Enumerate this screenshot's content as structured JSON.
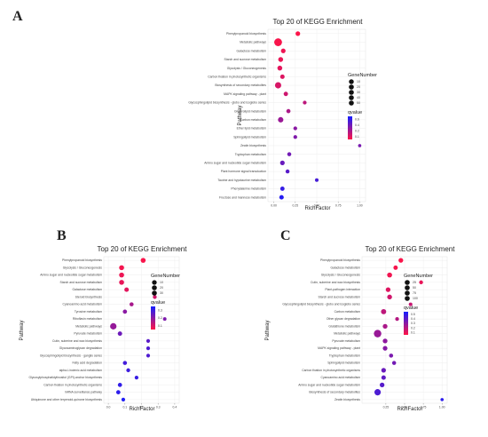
{
  "panel_letters": {
    "a": "A",
    "b": "B",
    "c": "C"
  },
  "chart_data": [
    {
      "type": "scatter",
      "title": "Top 20 of KEGG Enrichment",
      "xlabel": "RichFactor",
      "ylabel": "Pathway",
      "xlim": [
        0,
        1
      ],
      "xticks": [
        "0.00",
        "0.25",
        "0.50",
        "0.75",
        "1.00"
      ],
      "grid": true,
      "legend": {
        "size_title": "GeneNumber",
        "size_values": [
          "10",
          "20",
          "30",
          "40",
          "50"
        ],
        "color_title": "qvalue",
        "color_values": [
          "0.6",
          "0.4",
          "0.2",
          "0.1"
        ]
      },
      "points": [
        {
          "pathway": "Phenylpropanoid biosynthesis",
          "x": 0.28,
          "genes": 8,
          "q": 0.01
        },
        {
          "pathway": "Metabolic pathways",
          "x": 0.05,
          "genes": 50,
          "q": 0.02
        },
        {
          "pathway": "Galactose metabolism",
          "x": 0.11,
          "genes": 8,
          "q": 0.05
        },
        {
          "pathway": "Starch and sucrose metabolism",
          "x": 0.08,
          "genes": 10,
          "q": 0.06
        },
        {
          "pathway": "Glycolysis / Gluconeogenesis",
          "x": 0.07,
          "genes": 10,
          "q": 0.08
        },
        {
          "pathway": "Carbon fixation in photosynthetic organisms",
          "x": 0.1,
          "genes": 7,
          "q": 0.1
        },
        {
          "pathway": "Biosynthesis of secondary metabolites",
          "x": 0.05,
          "genes": 25,
          "q": 0.12
        },
        {
          "pathway": "MAPK signaling pathway - plant",
          "x": 0.14,
          "genes": 6,
          "q": 0.15
        },
        {
          "pathway": "Glycosphingolipid biosynthesis - globo and isoglobo series",
          "x": 0.36,
          "genes": 3,
          "q": 0.2
        },
        {
          "pathway": "Glycerolipid metabolism",
          "x": 0.17,
          "genes": 5,
          "q": 0.25
        },
        {
          "pathway": "Carbon metabolism",
          "x": 0.08,
          "genes": 15,
          "q": 0.3
        },
        {
          "pathway": "Ether lipid metabolism",
          "x": 0.25,
          "genes": 3,
          "q": 0.35
        },
        {
          "pathway": "Sphingolipid metabolism",
          "x": 0.25,
          "genes": 3,
          "q": 0.38
        },
        {
          "pathway": "Zeatin biosynthesis",
          "x": 1.0,
          "genes": 1,
          "q": 0.4
        },
        {
          "pathway": "Tryptophan metabolism",
          "x": 0.18,
          "genes": 4,
          "q": 0.42
        },
        {
          "pathway": "Amino sugar and nucleotide sugar metabolism",
          "x": 0.1,
          "genes": 8,
          "q": 0.45
        },
        {
          "pathway": "Plant hormone signal transduction",
          "x": 0.16,
          "genes": 4,
          "q": 0.5
        },
        {
          "pathway": "Taurine and hypotaurine metabolism",
          "x": 0.5,
          "genes": 2,
          "q": 0.55
        },
        {
          "pathway": "Phenylalanine metabolism",
          "x": 0.1,
          "genes": 6,
          "q": 0.6
        },
        {
          "pathway": "Fructose and mannose metabolism",
          "x": 0.09,
          "genes": 7,
          "q": 0.65
        }
      ]
    },
    {
      "type": "scatter",
      "title": "Top 20 of KEGG Enrichment",
      "xlabel": "RichFactor",
      "ylabel": "Pathway",
      "xlim": [
        0,
        0.4
      ],
      "xticks": [
        "0.0",
        "0.1",
        "0.2",
        "0.3",
        "0.4"
      ],
      "grid": true,
      "legend": {
        "size_title": "GeneNumber",
        "size_values": [
          "10",
          "20",
          "30"
        ],
        "color_title": "qvalue",
        "color_values": [
          "0.3",
          "0.2",
          "0.1"
        ]
      },
      "points": [
        {
          "pathway": "Phenylpropanoid biosynthesis",
          "x": 0.21,
          "genes": 12,
          "q": 0.01
        },
        {
          "pathway": "Glycolysis / Gluconeogenesis",
          "x": 0.08,
          "genes": 12,
          "q": 0.02
        },
        {
          "pathway": "Amino sugar and nucleotide sugar metabolism",
          "x": 0.08,
          "genes": 12,
          "q": 0.03
        },
        {
          "pathway": "Starch and sucrose metabolism",
          "x": 0.08,
          "genes": 12,
          "q": 0.04
        },
        {
          "pathway": "Galactose metabolism",
          "x": 0.11,
          "genes": 8,
          "q": 0.05
        },
        {
          "pathway": "Steroid biosynthesis",
          "x": 0.28,
          "genes": 4,
          "q": 0.08
        },
        {
          "pathway": "Cyanoamino acid metabolism",
          "x": 0.14,
          "genes": 5,
          "q": 0.15
        },
        {
          "pathway": "Tyrosine metabolism",
          "x": 0.1,
          "genes": 6,
          "q": 0.2
        },
        {
          "pathway": "Riboflavin metabolism",
          "x": 0.34,
          "genes": 2,
          "q": 0.22
        },
        {
          "pathway": "Metabolic pathways",
          "x": 0.03,
          "genes": 30,
          "q": 0.18
        },
        {
          "pathway": "Pyruvate metabolism",
          "x": 0.07,
          "genes": 7,
          "q": 0.25
        },
        {
          "pathway": "Cutin, suberine and wax biosynthesis",
          "x": 0.24,
          "genes": 3,
          "q": 0.28
        },
        {
          "pathway": "Glycosaminoglycan degradation",
          "x": 0.24,
          "genes": 3,
          "q": 0.3
        },
        {
          "pathway": "Glycosphingolipid biosynthesis - ganglio series",
          "x": 0.24,
          "genes": 3,
          "q": 0.3
        },
        {
          "pathway": "Fatty acid degradation",
          "x": 0.1,
          "genes": 5,
          "q": 0.32
        },
        {
          "pathway": "alpha-Linolenic acid metabolism",
          "x": 0.12,
          "genes": 4,
          "q": 0.33
        },
        {
          "pathway": "Glycosylphosphatidylinositol (GPI)-anchor biosynthesis",
          "x": 0.17,
          "genes": 3,
          "q": 0.34
        },
        {
          "pathway": "Carbon fixation in photosynthetic organisms",
          "x": 0.07,
          "genes": 6,
          "q": 0.35
        },
        {
          "pathway": "mRNA surveillance pathway",
          "x": 0.06,
          "genes": 6,
          "q": 0.36
        },
        {
          "pathway": "Ubiquinone and other terpenoid-quinone biosynthesis",
          "x": 0.09,
          "genes": 3,
          "q": 0.38
        }
      ]
    },
    {
      "type": "scatter",
      "title": "Top 20 of KEGG Enrichment",
      "xlabel": "RichFactor",
      "ylabel": "Pathway",
      "xlim": [
        0,
        1
      ],
      "xticks": [
        "0.25",
        "0.50",
        "0.75",
        "1.00"
      ],
      "grid": true,
      "legend": {
        "size_title": "GeneNumber",
        "size_values": [
          "25",
          "50",
          "75",
          "100"
        ],
        "color_title": "qvalue",
        "color_values": [
          "0.5",
          "0.4",
          "0.3",
          "0.2",
          "0.1"
        ]
      },
      "points": [
        {
          "pathway": "Phenylpropanoid biosynthesis",
          "x": 0.45,
          "genes": 20,
          "q": 0.01
        },
        {
          "pathway": "Galactose metabolism",
          "x": 0.38,
          "genes": 14,
          "q": 0.02
        },
        {
          "pathway": "Glycolysis / Gluconeogenesis",
          "x": 0.3,
          "genes": 25,
          "q": 0.03
        },
        {
          "pathway": "Cutin, suberine and wax biosynthesis",
          "x": 0.72,
          "genes": 8,
          "q": 0.05
        },
        {
          "pathway": "Plant-pathogen interaction",
          "x": 0.28,
          "genes": 20,
          "q": 0.07
        },
        {
          "pathway": "Starch and sucrose metabolism",
          "x": 0.3,
          "genes": 22,
          "q": 0.1
        },
        {
          "pathway": "Glycosphingolipid biosynthesis - globo and isoglobo series",
          "x": 0.58,
          "genes": 5,
          "q": 0.12
        },
        {
          "pathway": "Carbon metabolism",
          "x": 0.22,
          "genes": 30,
          "q": 0.14
        },
        {
          "pathway": "Other glycan degradation",
          "x": 0.4,
          "genes": 7,
          "q": 0.16
        },
        {
          "pathway": "Glutathione metabolism",
          "x": 0.24,
          "genes": 20,
          "q": 0.18
        },
        {
          "pathway": "Metabolic pathways",
          "x": 0.14,
          "genes": 100,
          "q": 0.22
        },
        {
          "pathway": "Pyruvate metabolism",
          "x": 0.24,
          "genes": 20,
          "q": 0.24
        },
        {
          "pathway": "MAPK signaling pathway - plant",
          "x": 0.24,
          "genes": 18,
          "q": 0.26
        },
        {
          "pathway": "Tryptophan metabolism",
          "x": 0.32,
          "genes": 10,
          "q": 0.28
        },
        {
          "pathway": "Sphingolipid metabolism",
          "x": 0.36,
          "genes": 9,
          "q": 0.3
        },
        {
          "pathway": "Carbon fixation in photosynthetic organisms",
          "x": 0.22,
          "genes": 18,
          "q": 0.32
        },
        {
          "pathway": "Cyanoamino acid metabolism",
          "x": 0.22,
          "genes": 15,
          "q": 0.34
        },
        {
          "pathway": "Amino sugar and nucleotide sugar metabolism",
          "x": 0.2,
          "genes": 20,
          "q": 0.36
        },
        {
          "pathway": "Biosynthesis of secondary metabolites",
          "x": 0.14,
          "genes": 60,
          "q": 0.38
        },
        {
          "pathway": "Zeatin biosynthesis",
          "x": 1.0,
          "genes": 2,
          "q": 0.45
        }
      ]
    }
  ]
}
